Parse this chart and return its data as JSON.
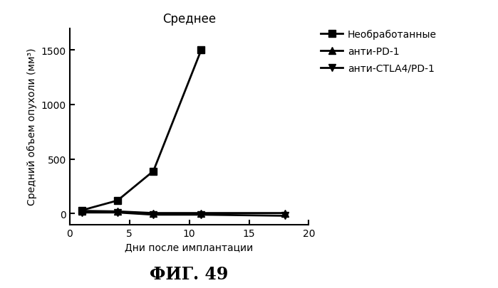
{
  "title": "Среднее",
  "xlabel": "Дни после имплантации",
  "ylabel": "Средний объем опухоли (мм³)",
  "figcaption": "ФИГ. 49",
  "xlim": [
    0,
    20
  ],
  "ylim": [
    -100,
    1700
  ],
  "yticks": [
    0,
    500,
    1000,
    1500
  ],
  "xticks": [
    0,
    5,
    10,
    15,
    20
  ],
  "series": [
    {
      "label": "Необработанные",
      "x": [
        1,
        4,
        7,
        11
      ],
      "y": [
        30,
        120,
        390,
        1500
      ],
      "color": "#000000",
      "marker": "s",
      "linewidth": 2.0,
      "markersize": 7
    },
    {
      "label": "анти-PD-1",
      "x": [
        1,
        4,
        7,
        11,
        18
      ],
      "y": [
        25,
        20,
        5,
        5,
        5
      ],
      "color": "#000000",
      "marker": "^",
      "linewidth": 2.0,
      "markersize": 7
    },
    {
      "label": "анти-CTLA4/PD-1",
      "x": [
        1,
        4,
        7,
        11,
        18
      ],
      "y": [
        10,
        10,
        -10,
        -10,
        -20
      ],
      "color": "#000000",
      "marker": "v",
      "linewidth": 2.0,
      "markersize": 7
    }
  ],
  "background_color": "#ffffff",
  "title_fontsize": 12,
  "label_fontsize": 10,
  "tick_fontsize": 10,
  "caption_fontsize": 17,
  "legend_fontsize": 10
}
